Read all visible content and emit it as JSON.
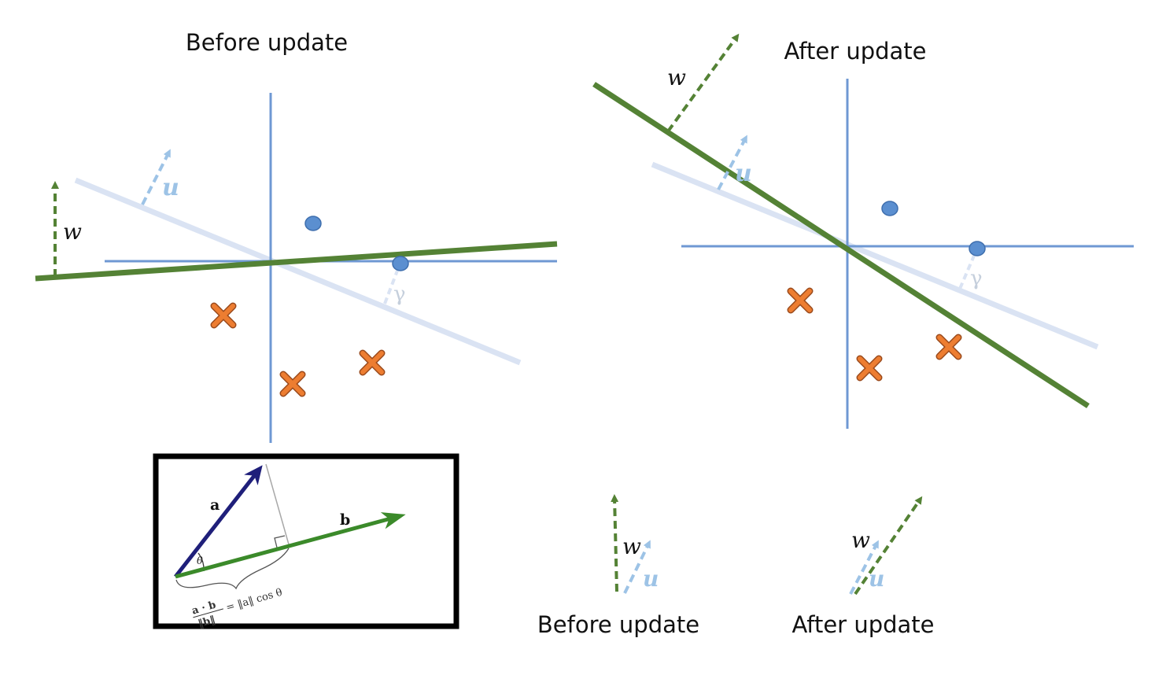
{
  "left_panel": {
    "title": "Before update",
    "w_label": "w",
    "u_label": "u",
    "gamma_label": "γ"
  },
  "right_panel": {
    "title": "After update",
    "w_label": "w",
    "u_label": "u",
    "gamma_label": "γ"
  },
  "inset": {
    "a_label": "a",
    "b_label": "b",
    "theta_label": "θ",
    "proj_num": "a · b",
    "proj_den": "‖b‖",
    "proj_rhs": "= ‖a‖ cos θ"
  },
  "bottom_left": {
    "caption": "Before update",
    "w_label": "w",
    "u_label": "u"
  },
  "bottom_right": {
    "caption": "After update",
    "w_label": "w",
    "u_label": "u"
  },
  "colors": {
    "axis": "#6f98d3",
    "w": "#548235",
    "u": "#9dc3e6",
    "u_faint": "#dae3f3",
    "circle": "#5b8fd0",
    "cross": "#ed7d31",
    "inset_a": "#1f1f7a",
    "inset_b": "#3b8a2a"
  }
}
